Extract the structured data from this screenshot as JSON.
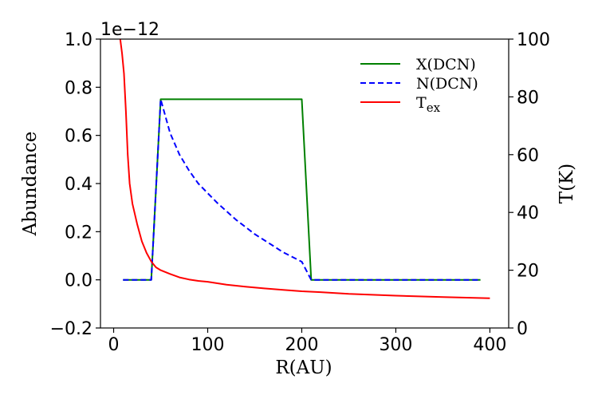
{
  "chart_data": {
    "type": "line",
    "offset_text": "1e−12",
    "xlabel": "R(AU)",
    "ylabel_left": "Abundance",
    "ylabel_right": "T(K)",
    "xlim": [
      -14,
      420
    ],
    "ylim_left": [
      -0.2,
      1.0
    ],
    "ylim_right": [
      0,
      100
    ],
    "x_ticks": [
      0,
      100,
      200,
      300,
      400
    ],
    "x_tick_labels": [
      "0",
      "100",
      "200",
      "300",
      "400"
    ],
    "y_left_ticks": [
      -0.2,
      0.0,
      0.2,
      0.4,
      0.6,
      0.8,
      1.0
    ],
    "y_left_tick_labels": [
      "−0.2",
      "0.0",
      "0.2",
      "0.4",
      "0.6",
      "0.8",
      "1.0"
    ],
    "y_right_ticks": [
      0,
      20,
      40,
      60,
      80,
      100
    ],
    "y_right_tick_labels": [
      "0",
      "20",
      "40",
      "60",
      "80",
      "100"
    ],
    "grid": false,
    "legend_position": "top-right",
    "series": [
      {
        "name": "X(DCN)",
        "axis": "left",
        "color": "#008000",
        "dash": "solid",
        "x": [
          10,
          40,
          50,
          200,
          210,
          390
        ],
        "y": [
          0.0,
          0.0,
          0.75,
          0.75,
          0.0,
          0.0
        ]
      },
      {
        "name": "N(DCN)",
        "axis": "left",
        "color": "#0000ff",
        "dash": "dashed",
        "x": [
          10,
          40,
          50,
          60,
          70,
          80,
          90,
          100,
          110,
          120,
          130,
          140,
          150,
          160,
          170,
          180,
          190,
          200,
          210,
          390
        ],
        "y": [
          0.0,
          0.0,
          0.75,
          0.61,
          0.52,
          0.455,
          0.4,
          0.36,
          0.32,
          0.285,
          0.25,
          0.22,
          0.19,
          0.165,
          0.14,
          0.115,
          0.095,
          0.075,
          0.0,
          0.0
        ]
      },
      {
        "name": "T_ex",
        "label_main": "T",
        "label_sub": "ex",
        "axis": "right",
        "color": "#ff0000",
        "dash": "solid",
        "x": [
          7,
          9,
          11,
          13,
          15,
          17,
          20,
          25,
          30,
          35,
          40,
          45,
          50,
          60,
          70,
          80,
          90,
          100,
          120,
          140,
          160,
          180,
          200,
          220,
          250,
          300,
          350,
          400
        ],
        "y": [
          100,
          95,
          88,
          75,
          60,
          50,
          43,
          36,
          30,
          26,
          23,
          21,
          20,
          18.7,
          17.5,
          16.8,
          16.3,
          16,
          15,
          14.3,
          13.7,
          13.2,
          12.7,
          12.4,
          11.8,
          11.2,
          10.7,
          10.3
        ]
      }
    ]
  }
}
